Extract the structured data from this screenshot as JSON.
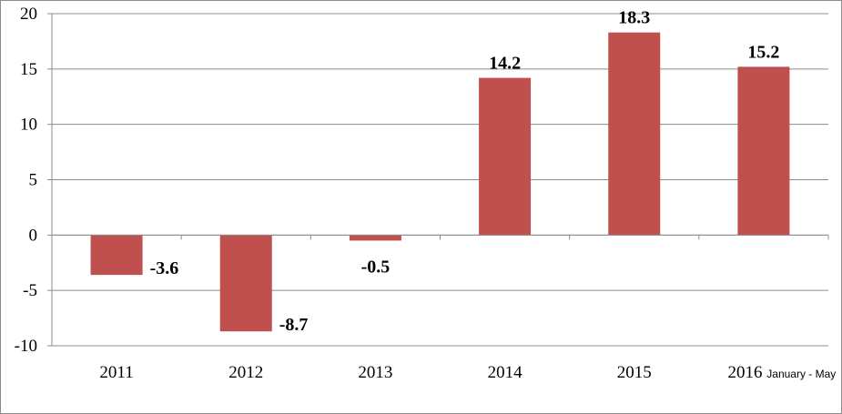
{
  "chart_data": {
    "type": "bar",
    "title": "",
    "xlabel": "",
    "ylabel": "",
    "categories": [
      "2011",
      "2012",
      "2013",
      "2014",
      "2015",
      "2016"
    ],
    "category_notes": [
      "",
      "",
      "",
      "",
      "",
      "January - May"
    ],
    "values": [
      -3.6,
      -8.7,
      -0.5,
      14.2,
      18.3,
      15.2
    ],
    "data_labels": [
      "-3.6",
      "-8.7",
      "-0.5",
      "14.2",
      "18.3",
      "15.2"
    ],
    "ylim": [
      -10,
      20
    ],
    "yticks": [
      -10,
      -5,
      0,
      5,
      10,
      15,
      20
    ],
    "ytick_labels": [
      "-10",
      "-5",
      "0",
      "5",
      "10",
      "15",
      "20"
    ],
    "grid": true,
    "legend": "none",
    "colors": {
      "bar": "#C0504D",
      "grid": "#8C8C8C",
      "axis": "#8C8C8C"
    }
  }
}
